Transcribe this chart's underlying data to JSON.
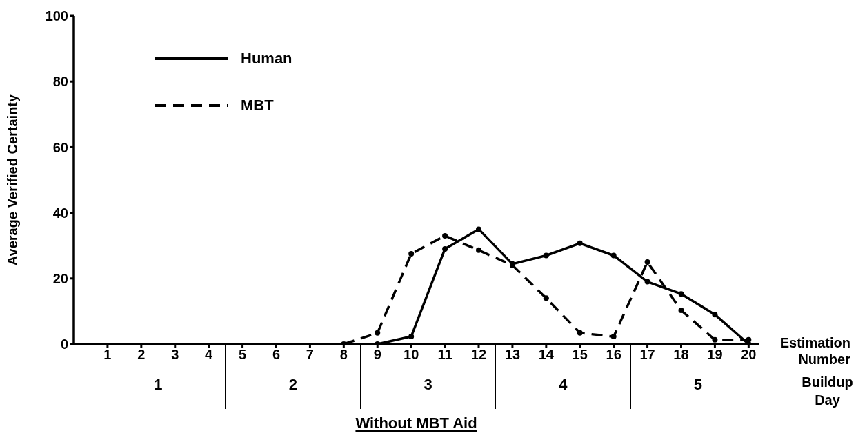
{
  "chart_data": {
    "type": "line",
    "x": [
      8,
      9,
      10,
      11,
      12,
      13,
      14,
      15,
      16,
      17,
      18,
      19,
      20
    ],
    "xlim": [
      0,
      20.3
    ],
    "xticks": [
      1,
      2,
      3,
      4,
      5,
      6,
      7,
      8,
      9,
      10,
      11,
      12,
      13,
      14,
      15,
      16,
      17,
      18,
      19,
      20
    ],
    "ylim": [
      0,
      100
    ],
    "yticks": [
      0,
      20,
      40,
      60,
      80,
      100
    ],
    "xlabel": "Estimation Number",
    "ylabel": "Average Verified Certainty",
    "series": [
      {
        "name": "Human",
        "color": "#000000",
        "line_style": "solid",
        "values": [
          null,
          0,
          2.3,
          29,
          35,
          24.4,
          27,
          30.7,
          27,
          19,
          15.3,
          9,
          0
        ]
      },
      {
        "name": "MBT",
        "color": "#000000",
        "line_style": "dashed",
        "values": [
          0,
          3.4,
          27.5,
          33,
          28.6,
          24,
          14,
          3.4,
          2.3,
          25,
          10.3,
          1.3,
          1.3
        ]
      }
    ],
    "marker": "circle",
    "grid": false,
    "legend": "top left",
    "annotations": [
      "1",
      "2",
      "3",
      "4",
      "5",
      "Buildup Day",
      "Without MBT Aid"
    ]
  }
}
